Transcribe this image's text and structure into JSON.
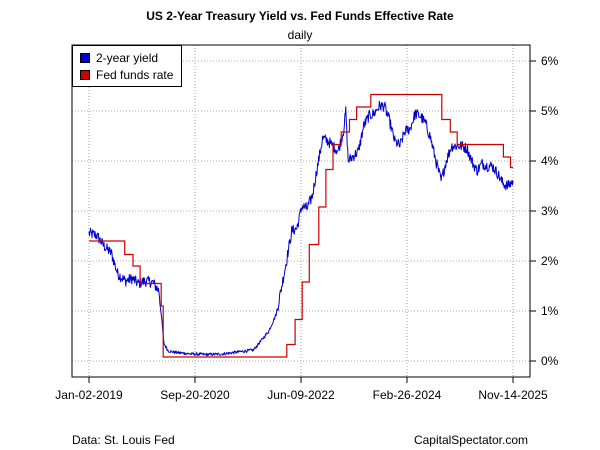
{
  "title": "US 2-Year Treasury Yield vs. Fed Funds Effective Rate",
  "subtitle": "daily",
  "source_note": "Data: St. Louis Fed",
  "credit": "CapitalSpectator.com",
  "colors": {
    "yield": "#0000cc",
    "fed": "#cc0000",
    "grid": "#aaaaaa",
    "axis": "#000000"
  },
  "legend": [
    {
      "label": "2-year yield",
      "color": "#0000cc"
    },
    {
      "label": "Fed funds rate",
      "color": "#cc0000"
    }
  ],
  "chart_data": {
    "type": "line",
    "title": "US 2-Year Treasury Yield vs. Fed Funds Effective Rate",
    "subtitle": "daily",
    "xlabel": "",
    "ylabel": "",
    "x_ticks": [
      "Jan-02-2019",
      "Sep-20-2020",
      "Jun-09-2022",
      "Feb-26-2024",
      "Nov-14-2025"
    ],
    "y_ticks": [
      "0%",
      "1%",
      "2%",
      "3%",
      "4%",
      "5%",
      "6%"
    ],
    "xlim": [
      "2019-01-02",
      "2025-11-14"
    ],
    "ylim": [
      0,
      6
    ],
    "y_axis_position": "right",
    "grid": true,
    "legend_position": "top-left",
    "series": [
      {
        "name": "2-year yield",
        "color": "#0000cc",
        "x": [
          "2019-01-02",
          "2019-02-15",
          "2019-04-01",
          "2019-05-15",
          "2019-06-20",
          "2019-08-05",
          "2019-09-15",
          "2019-10-20",
          "2019-12-01",
          "2020-01-15",
          "2020-02-20",
          "2020-03-05",
          "2020-03-20",
          "2020-04-15",
          "2020-06-01",
          "2020-09-01",
          "2020-12-01",
          "2021-03-01",
          "2021-06-01",
          "2021-09-01",
          "2021-10-15",
          "2021-12-01",
          "2022-01-15",
          "2022-02-15",
          "2022-03-15",
          "2022-04-15",
          "2022-05-15",
          "2022-06-15",
          "2022-07-15",
          "2022-08-15",
          "2022-09-15",
          "2022-10-15",
          "2022-11-15",
          "2022-12-15",
          "2023-01-15",
          "2023-02-15",
          "2023-03-01",
          "2023-03-15",
          "2023-04-15",
          "2023-05-15",
          "2023-06-15",
          "2023-07-15",
          "2023-08-15",
          "2023-09-15",
          "2023-10-15",
          "2023-11-15",
          "2023-12-15",
          "2024-01-15",
          "2024-02-15",
          "2024-03-15",
          "2024-04-15",
          "2024-05-15",
          "2024-06-15",
          "2024-07-15",
          "2024-08-15",
          "2024-09-15",
          "2024-10-15",
          "2024-11-15",
          "2024-12-15",
          "2025-01-15",
          "2025-02-15",
          "2025-03-15",
          "2025-04-15",
          "2025-05-15",
          "2025-06-15",
          "2025-07-15",
          "2025-08-15",
          "2025-09-15",
          "2025-10-15",
          "2025-11-14"
        ],
        "values": [
          2.55,
          2.52,
          2.3,
          2.15,
          1.75,
          1.6,
          1.65,
          1.55,
          1.6,
          1.57,
          1.4,
          0.9,
          0.35,
          0.2,
          0.17,
          0.14,
          0.13,
          0.14,
          0.18,
          0.22,
          0.4,
          0.6,
          0.95,
          1.5,
          2.0,
          2.6,
          2.65,
          3.1,
          3.05,
          3.3,
          3.9,
          4.45,
          4.4,
          4.3,
          4.2,
          4.6,
          5.0,
          4.0,
          4.1,
          4.2,
          4.7,
          4.9,
          4.95,
          5.1,
          5.1,
          4.8,
          4.4,
          4.3,
          4.6,
          4.65,
          4.95,
          4.9,
          4.75,
          4.45,
          4.0,
          3.6,
          4.0,
          4.3,
          4.3,
          4.3,
          4.25,
          4.0,
          3.8,
          3.95,
          3.9,
          3.9,
          3.75,
          3.55,
          3.5,
          3.6
        ]
      },
      {
        "name": "Fed funds rate",
        "color": "#cc0000",
        "x": [
          "2019-01-02",
          "2019-08-01",
          "2019-09-19",
          "2019-10-31",
          "2020-03-04",
          "2020-03-16",
          "2022-03-17",
          "2022-05-05",
          "2022-06-16",
          "2022-07-28",
          "2022-09-22",
          "2022-11-03",
          "2022-12-15",
          "2023-02-02",
          "2023-03-23",
          "2023-05-04",
          "2023-07-27",
          "2024-09-19",
          "2024-11-08",
          "2024-12-19",
          "2025-09-18",
          "2025-10-30",
          "2025-11-14"
        ],
        "values": [
          2.4,
          2.13,
          1.9,
          1.55,
          1.1,
          0.08,
          0.33,
          0.83,
          1.58,
          2.33,
          3.08,
          3.83,
          4.33,
          4.58,
          4.83,
          5.08,
          5.33,
          4.83,
          4.58,
          4.33,
          4.08,
          3.87,
          3.87
        ]
      }
    ]
  }
}
